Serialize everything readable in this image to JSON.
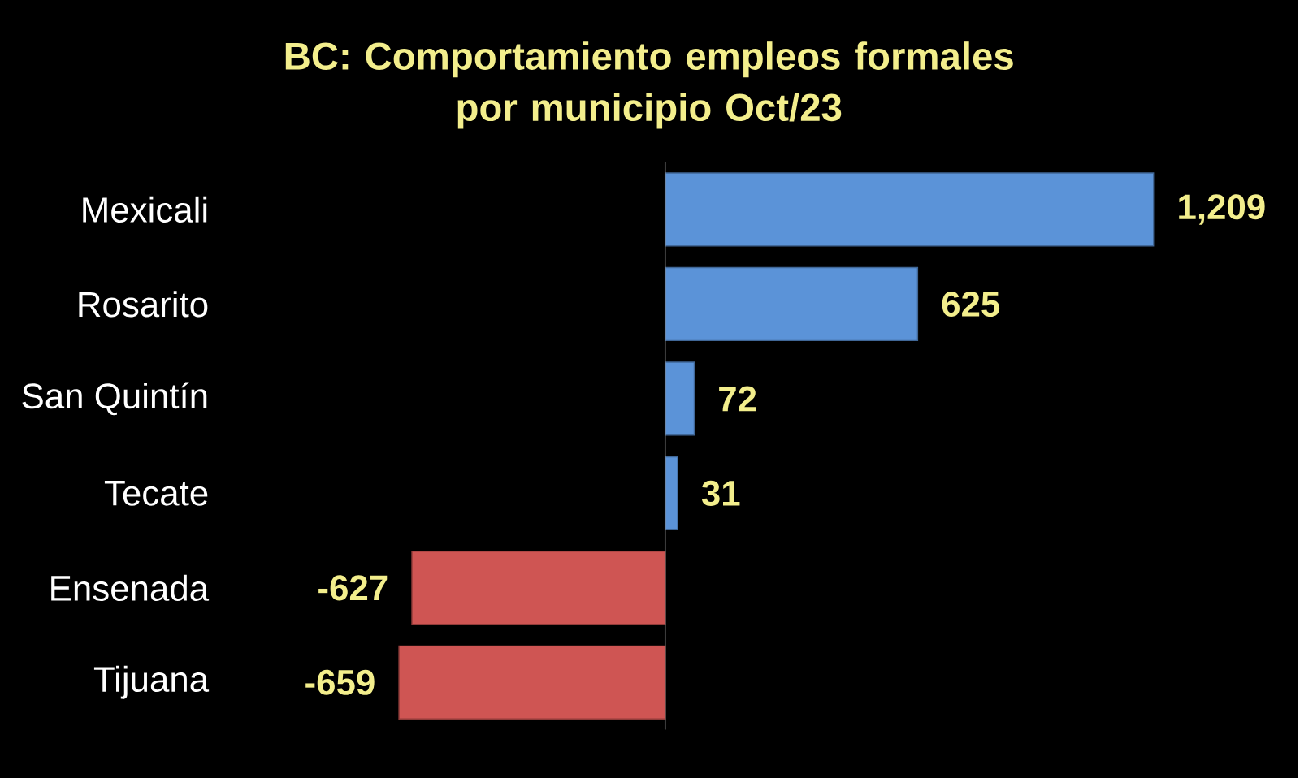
{
  "chart_data": {
    "type": "bar",
    "orientation": "horizontal",
    "title": "BC:  Comportamiento empleos formales\npor municipio  Oct/23",
    "categories": [
      "Mexicali",
      "Rosarito",
      "San Quintín",
      "Tecate",
      "Ensenada",
      "Tijuana"
    ],
    "values": [
      1209,
      625,
      72,
      31,
      -627,
      -659
    ],
    "value_labels": [
      "1,209",
      "625",
      "72",
      "31",
      "-627",
      "-659"
    ],
    "colors": [
      "#5b93d8",
      "#5b93d8",
      "#5b93d8",
      "#5b93d8",
      "#cf5553",
      "#cf5553"
    ]
  }
}
